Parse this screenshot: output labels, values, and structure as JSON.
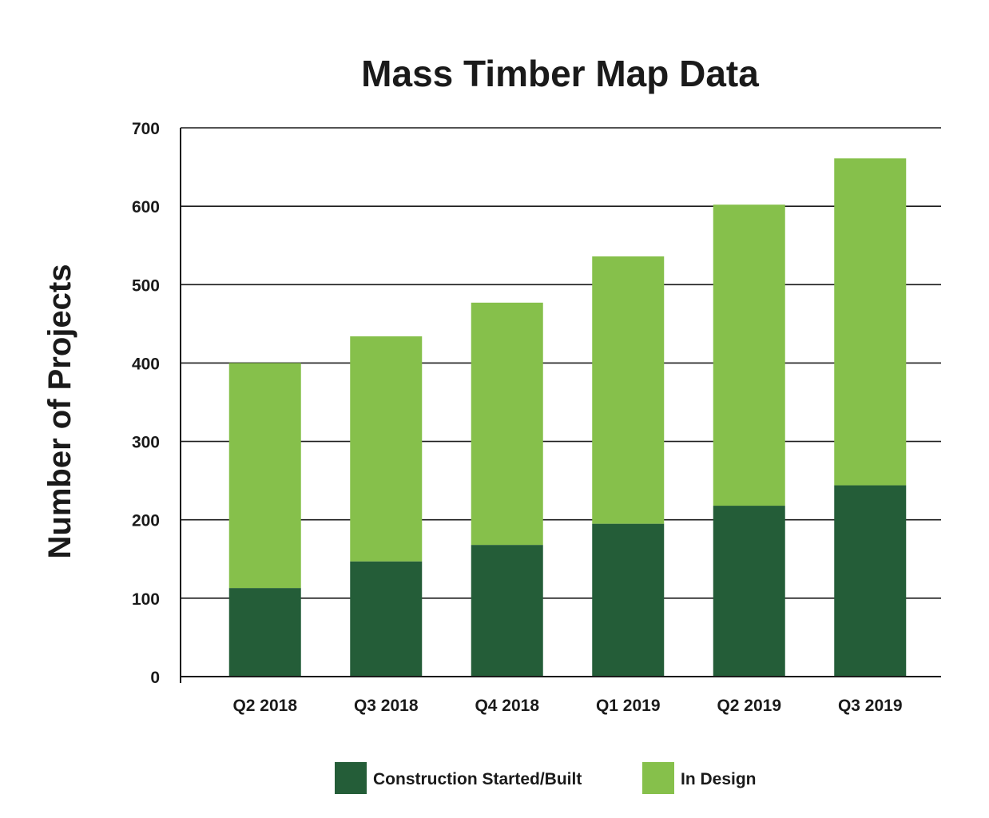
{
  "chart_data": {
    "type": "bar",
    "stacked": true,
    "title": "Mass Timber Map Data",
    "xlabel": "",
    "ylabel": "Number of Projects",
    "ylim": [
      0,
      700
    ],
    "yticks": [
      0,
      100,
      200,
      300,
      400,
      500,
      600,
      700
    ],
    "grid": true,
    "legend_position": "bottom",
    "categories": [
      "Q2 2018",
      "Q3 2018",
      "Q4 2018",
      "Q1 2019",
      "Q2 2019",
      "Q3 2019"
    ],
    "series": [
      {
        "name": "Construction Started/Built",
        "color": "#245d38",
        "values": [
          113,
          147,
          168,
          195,
          218,
          244
        ]
      },
      {
        "name": "In Design",
        "color": "#86c04b",
        "values": [
          287,
          287,
          309,
          341,
          384,
          417
        ]
      }
    ]
  }
}
